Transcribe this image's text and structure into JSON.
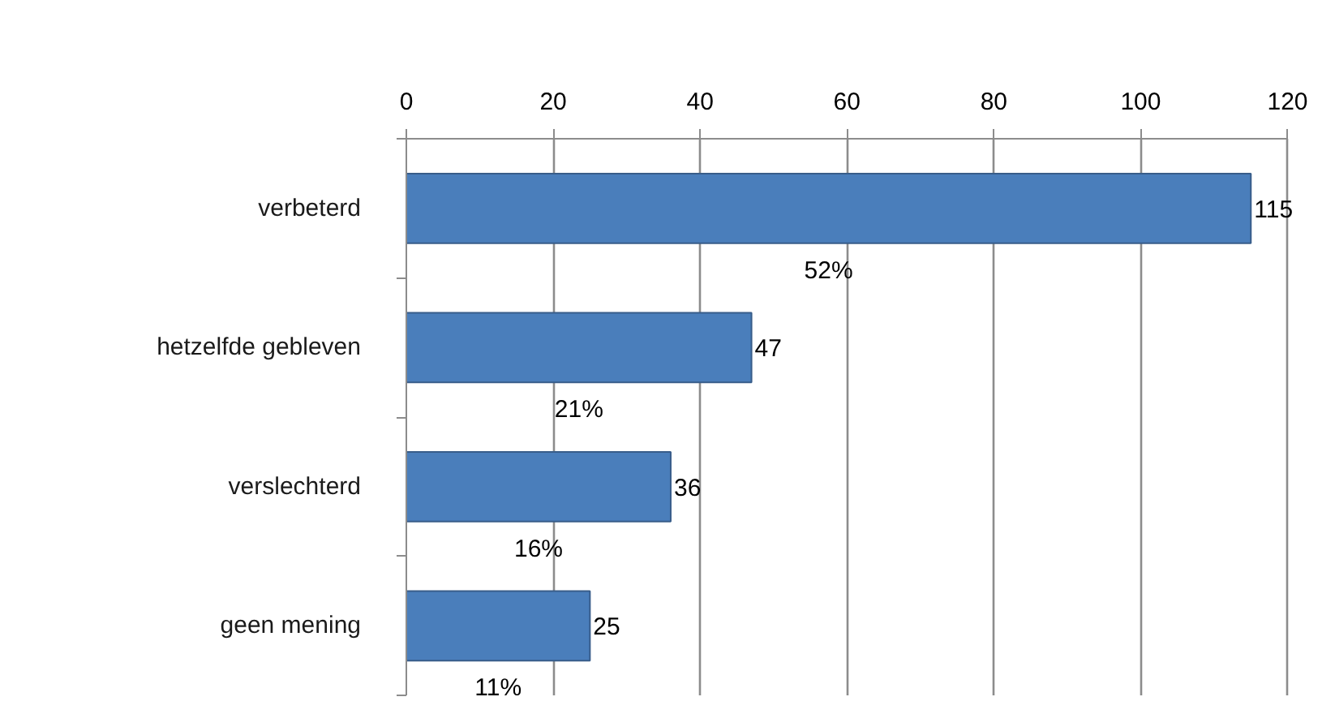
{
  "chart_data": {
    "type": "bar",
    "orientation": "horizontal",
    "categories": [
      "verbeterd",
      "hetzelfde gebleven",
      "verslechterd",
      "geen mening"
    ],
    "values": [
      115,
      47,
      36,
      25
    ],
    "color": "#4a7ebb",
    "xlim": [
      0,
      120
    ],
    "xticks": [
      0,
      20,
      40,
      60,
      80,
      100,
      120
    ],
    "grid": "x",
    "data_labels": true,
    "annotations": [
      "52%",
      "21%",
      "16%",
      "11%"
    ]
  }
}
